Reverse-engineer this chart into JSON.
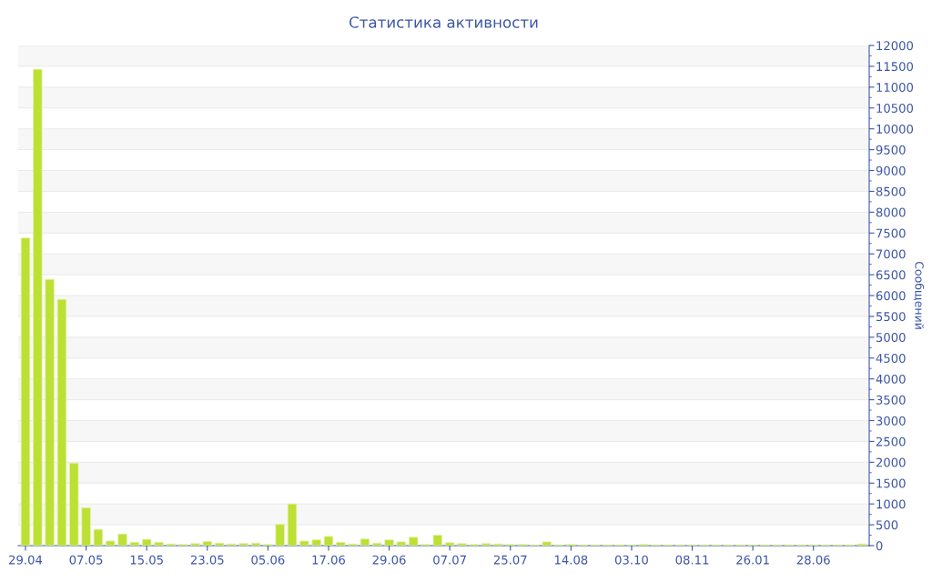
{
  "chart_data": {
    "type": "bar",
    "title": "Статистика активности",
    "ylabel": "Сообщений",
    "categories": [
      "29.04",
      null,
      null,
      null,
      null,
      "07.05",
      null,
      null,
      null,
      null,
      "15.05",
      null,
      null,
      null,
      null,
      "23.05",
      null,
      null,
      null,
      null,
      "05.06",
      null,
      null,
      null,
      null,
      "17.06",
      null,
      null,
      null,
      null,
      "29.06",
      null,
      null,
      null,
      null,
      "07.07",
      null,
      null,
      null,
      null,
      "25.07",
      null,
      null,
      null,
      null,
      "14.08",
      null,
      null,
      null,
      null,
      "03.10",
      null,
      null,
      null,
      null,
      "08.11",
      null,
      null,
      null,
      null,
      "26.01",
      null,
      null,
      null,
      null,
      "28.06",
      null,
      null,
      null,
      null
    ],
    "values": [
      7380,
      11430,
      6390,
      5910,
      1980,
      910,
      390,
      110,
      280,
      80,
      150,
      80,
      40,
      30,
      50,
      100,
      60,
      40,
      50,
      60,
      30,
      510,
      1000,
      110,
      140,
      220,
      80,
      40,
      160,
      60,
      140,
      90,
      200,
      30,
      250,
      70,
      50,
      30,
      50,
      40,
      30,
      30,
      20,
      90,
      20,
      30,
      20,
      20,
      20,
      20,
      20,
      30,
      20,
      20,
      20,
      20,
      20,
      20,
      20,
      20,
      20,
      20,
      20,
      20,
      20,
      20,
      20,
      20,
      20,
      40
    ],
    "color": "#bce033",
    "ylim": [
      0,
      12000
    ],
    "yticks": [
      0,
      500,
      1000,
      1500,
      2000,
      2500,
      3000,
      3500,
      4000,
      4500,
      5000,
      5500,
      6000,
      6500,
      7000,
      7500,
      8000,
      8500,
      9000,
      9500,
      10000,
      10500,
      11000,
      11500,
      12000
    ],
    "grid": "y",
    "legend": false
  }
}
